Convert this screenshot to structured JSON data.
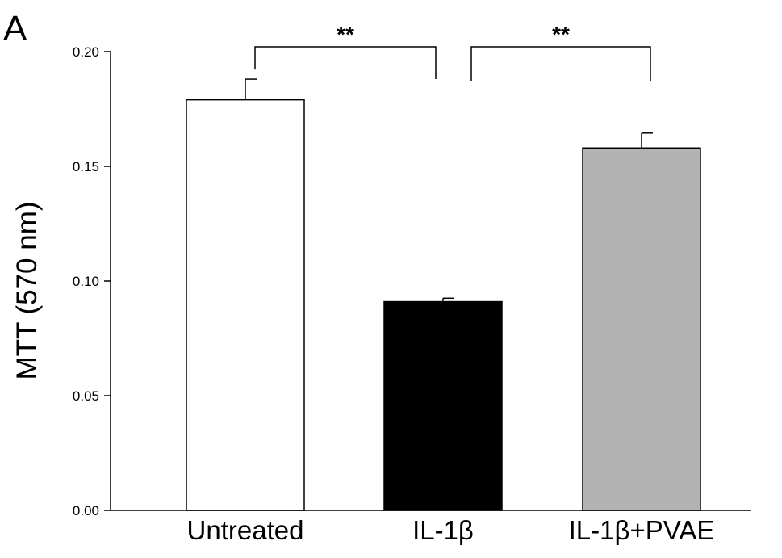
{
  "panel_label": "A",
  "chart_data": {
    "type": "bar",
    "title": "",
    "xlabel": "",
    "ylabel": "MTT (570 nm)",
    "ylim": [
      0,
      0.2
    ],
    "yticks": [
      "0.00",
      "0.05",
      "0.10",
      "0.15",
      "0.20"
    ],
    "ytick_values": [
      0,
      0.05,
      0.1,
      0.15,
      0.2
    ],
    "categories": [
      "Untreated",
      "IL-1β",
      "IL-1β+PVAE"
    ],
    "values": [
      0.179,
      0.091,
      0.158
    ],
    "errors": [
      0.009,
      0.0015,
      0.0065
    ],
    "bar_colors": [
      "#ffffff",
      "#000000",
      "#b3b3b3"
    ],
    "significance": [
      {
        "from": 0,
        "to": 1,
        "label": "**"
      },
      {
        "from": 1,
        "to": 2,
        "label": "**"
      }
    ]
  }
}
